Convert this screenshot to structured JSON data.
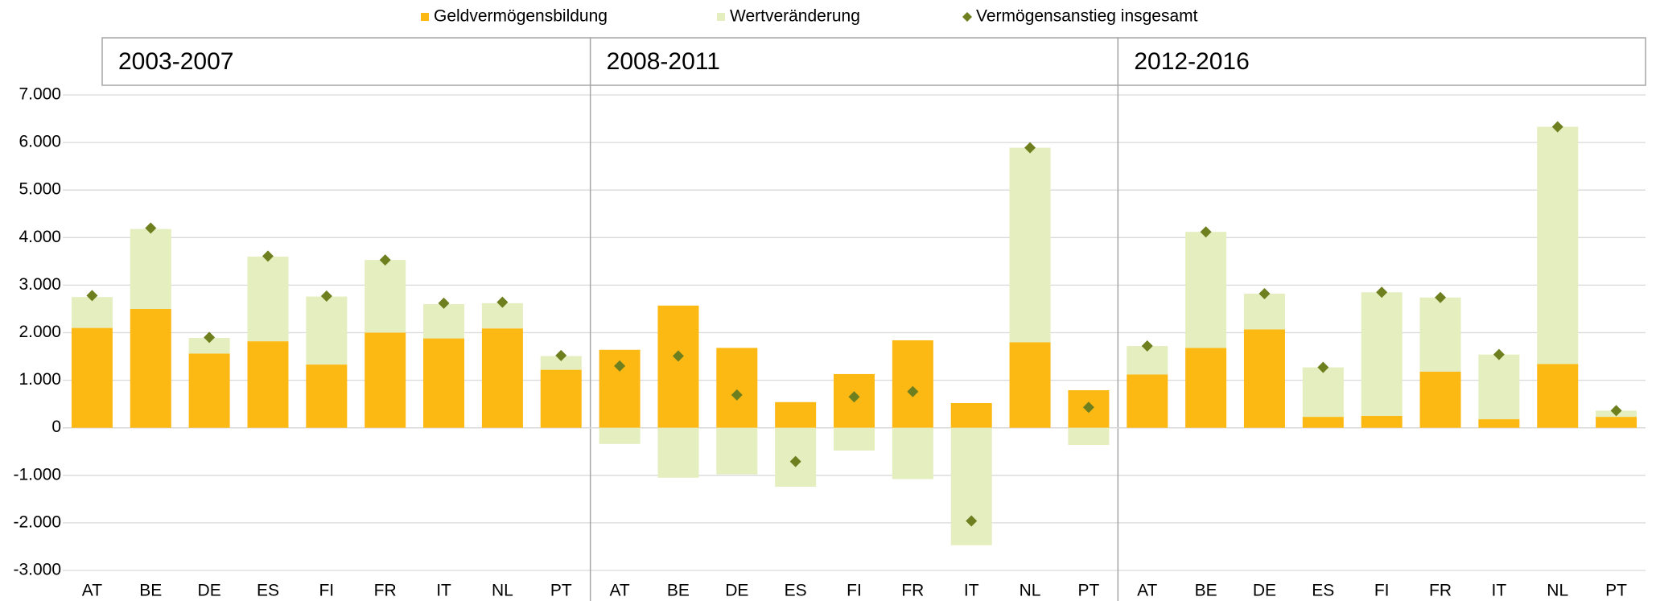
{
  "chart_data": {
    "type": "bar",
    "stacked": true,
    "panels": [
      "2003-2007",
      "2008-2011",
      "2012-2016"
    ],
    "categories": [
      "AT",
      "BE",
      "DE",
      "ES",
      "FI",
      "FR",
      "IT",
      "NL",
      "PT",
      "AT",
      "BE",
      "DE",
      "ES",
      "FI",
      "FR",
      "IT",
      "NL",
      "PT",
      "AT",
      "BE",
      "DE",
      "ES",
      "FI",
      "FR",
      "IT",
      "NL",
      "PT"
    ],
    "series": [
      {
        "name": "Geldvermögensbildung",
        "color": "#FDB913",
        "kind": "bar",
        "values": [
          2100,
          2500,
          1560,
          1820,
          1330,
          2000,
          1880,
          2090,
          1220,
          1640,
          2570,
          1680,
          540,
          1130,
          1840,
          520,
          1800,
          790,
          1120,
          1680,
          2070,
          230,
          250,
          1180,
          180,
          1340,
          230
        ]
      },
      {
        "name": "Wertveränderung",
        "color": "#E5EEBF",
        "kind": "bar",
        "values": [
          650,
          1680,
          330,
          1780,
          1430,
          1530,
          720,
          530,
          290,
          -340,
          -1050,
          -980,
          -1240,
          -480,
          -1080,
          -2470,
          4090,
          -360,
          600,
          2440,
          750,
          1040,
          2600,
          1560,
          1360,
          4990,
          130
        ]
      },
      {
        "name": "Vermögensanstieg insgesamt",
        "color": "#6E7F1F",
        "kind": "diamond",
        "values": [
          2780,
          4200,
          1900,
          3610,
          2770,
          3530,
          2620,
          2640,
          1520,
          1300,
          1510,
          690,
          -710,
          650,
          760,
          -1960,
          5890,
          430,
          1720,
          4120,
          2820,
          1270,
          2850,
          2740,
          1540,
          6330,
          360
        ]
      }
    ],
    "ylim": [
      -3000,
      7000
    ],
    "yticks": [
      {
        "value": -3000,
        "label": "-3.000"
      },
      {
        "value": -2000,
        "label": "-2.000"
      },
      {
        "value": -1000,
        "label": "-1.000"
      },
      0,
      {
        "value": 1000,
        "label": "1.000"
      },
      {
        "value": 2000,
        "label": "2.000"
      },
      {
        "value": 3000,
        "label": "3.000"
      },
      {
        "value": 4000,
        "label": "4.000"
      },
      {
        "value": 5000,
        "label": "5.000"
      },
      {
        "value": 6000,
        "label": "6.000"
      },
      {
        "value": 7000,
        "label": "7.000"
      }
    ],
    "grid": true,
    "legend": "top"
  }
}
